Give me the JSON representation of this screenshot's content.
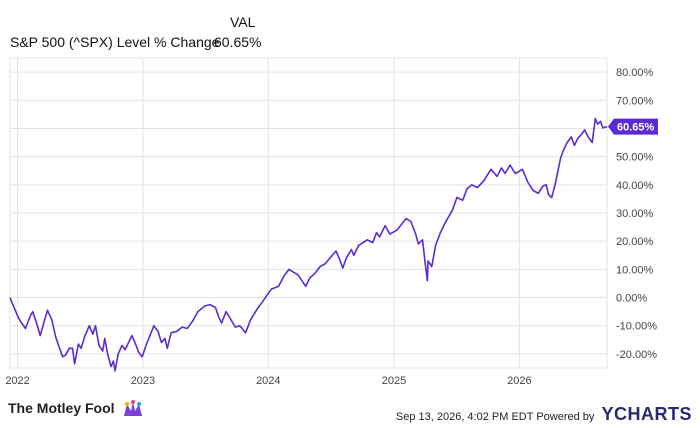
{
  "legend": {
    "header": "VAL",
    "series_name": "S&P 500 (^SPX) Level % Change",
    "value": "60.65%"
  },
  "footer": {
    "brand": "The Motley Fool",
    "timestamp": "Sep 13, 2026, 4:02 PM EDT",
    "powered_by": "Powered by",
    "provider": "YCHARTS"
  },
  "colors": {
    "line": "#5b2bd1",
    "grid": "#e3e3e3",
    "axis_text": "#444444"
  },
  "chart_data": {
    "type": "line",
    "title": "",
    "xlabel": "",
    "ylabel": "",
    "ylim": [
      -25,
      85
    ],
    "yticks": [
      -20,
      -10,
      0,
      10,
      20,
      30,
      40,
      50,
      60,
      70,
      80
    ],
    "ytick_labels": [
      "-20.00%",
      "-10.00%",
      "0.00%",
      "10.00%",
      "20.00%",
      "30.00%",
      "40.00%",
      "50.00%",
      "60.00%",
      "70.00%",
      "80.00%"
    ],
    "xlim": [
      "2021-12-10",
      "2026-09-13"
    ],
    "xticks": [
      "2022-01-01",
      "2023-01-01",
      "2024-01-01",
      "2025-01-01",
      "2026-01-01"
    ],
    "xtick_labels": [
      "2022",
      "2023",
      "2024",
      "2025",
      "2026"
    ],
    "last_value_label": "60.65%",
    "grid": true,
    "series": [
      {
        "name": "S&P 500 (^SPX) Level % Change",
        "x": [
          "2021-12-10",
          "2021-12-20",
          "2022-01-03",
          "2022-01-10",
          "2022-01-24",
          "2022-02-07",
          "2022-02-14",
          "2022-02-24",
          "2022-03-08",
          "2022-03-29",
          "2022-04-11",
          "2022-04-22",
          "2022-05-02",
          "2022-05-12",
          "2022-05-20",
          "2022-06-01",
          "2022-06-10",
          "2022-06-16",
          "2022-06-27",
          "2022-07-05",
          "2022-07-15",
          "2022-07-29",
          "2022-08-08",
          "2022-08-16",
          "2022-08-26",
          "2022-09-06",
          "2022-09-12",
          "2022-09-20",
          "2022-09-30",
          "2022-10-07",
          "2022-10-12",
          "2022-10-21",
          "2022-11-01",
          "2022-11-10",
          "2022-11-30",
          "2022-12-09",
          "2022-12-20",
          "2022-12-30",
          "2023-01-10",
          "2023-02-02",
          "2023-02-14",
          "2023-02-24",
          "2023-03-06",
          "2023-03-13",
          "2023-03-24",
          "2023-04-10",
          "2023-04-25",
          "2023-05-10",
          "2023-05-25",
          "2023-06-10",
          "2023-06-30",
          "2023-07-15",
          "2023-07-31",
          "2023-08-10",
          "2023-08-18",
          "2023-08-31",
          "2023-09-15",
          "2023-09-27",
          "2023-10-10",
          "2023-10-27",
          "2023-11-10",
          "2023-11-30",
          "2023-12-15",
          "2023-12-29",
          "2024-01-10",
          "2024-01-31",
          "2024-02-15",
          "2024-03-01",
          "2024-03-28",
          "2024-04-10",
          "2024-04-19",
          "2024-05-01",
          "2024-05-15",
          "2024-05-31",
          "2024-06-15",
          "2024-06-28",
          "2024-07-16",
          "2024-07-25",
          "2024-08-05",
          "2024-08-15",
          "2024-08-30",
          "2024-09-06",
          "2024-09-20",
          "2024-10-15",
          "2024-10-31",
          "2024-11-11",
          "2024-11-20",
          "2024-12-06",
          "2024-12-20",
          "2025-01-10",
          "2025-01-23",
          "2025-02-05",
          "2025-02-19",
          "2025-03-05",
          "2025-03-13",
          "2025-03-25",
          "2025-04-03",
          "2025-04-08",
          "2025-04-10",
          "2025-04-21",
          "2025-05-02",
          "2025-05-16",
          "2025-06-01",
          "2025-06-20",
          "2025-07-03",
          "2025-07-20",
          "2025-08-01",
          "2025-08-15",
          "2025-09-01",
          "2025-09-20",
          "2025-10-10",
          "2025-10-28",
          "2025-11-10",
          "2025-11-20",
          "2025-12-05",
          "2025-12-20",
          "2026-01-10",
          "2026-01-25",
          "2026-02-10",
          "2026-02-25",
          "2026-03-10",
          "2026-03-20",
          "2026-03-27",
          "2026-04-05",
          "2026-04-15",
          "2026-05-01",
          "2026-05-10",
          "2026-05-20",
          "2026-06-01",
          "2026-06-10",
          "2026-06-20",
          "2026-07-01",
          "2026-07-10",
          "2026-07-20",
          "2026-08-01",
          "2026-08-10",
          "2026-08-17",
          "2026-08-25",
          "2026-09-01",
          "2026-09-13"
        ],
        "y": [
          0.0,
          -3.0,
          -7.0,
          -8.5,
          -11.0,
          -6.5,
          -5.0,
          -8.5,
          -13.5,
          -4.5,
          -8.0,
          -14.0,
          -17.5,
          -21.0,
          -20.5,
          -18.0,
          -18.0,
          -23.5,
          -16.5,
          -18.0,
          -14.0,
          -10.0,
          -13.0,
          -10.0,
          -17.0,
          -19.0,
          -14.5,
          -20.0,
          -24.5,
          -22.5,
          -26.0,
          -20.0,
          -17.0,
          -18.5,
          -13.5,
          -16.0,
          -19.5,
          -21.0,
          -17.0,
          -10.0,
          -12.0,
          -16.0,
          -14.5,
          -18.0,
          -12.5,
          -12.0,
          -10.5,
          -11.0,
          -8.5,
          -5.0,
          -3.0,
          -2.5,
          -3.5,
          -7.0,
          -9.0,
          -5.0,
          -8.0,
          -10.5,
          -10.0,
          -12.5,
          -8.0,
          -4.0,
          -1.5,
          1.0,
          3.0,
          4.0,
          7.5,
          10.0,
          8.0,
          5.5,
          4.0,
          7.0,
          8.5,
          11.0,
          12.0,
          14.0,
          16.5,
          14.0,
          10.5,
          14.0,
          17.0,
          15.0,
          18.5,
          20.5,
          19.5,
          23.0,
          21.5,
          25.5,
          22.5,
          24.0,
          26.0,
          28.0,
          27.0,
          22.5,
          19.0,
          20.5,
          11.0,
          6.0,
          13.0,
          11.0,
          18.5,
          23.0,
          27.0,
          31.0,
          35.5,
          34.5,
          38.5,
          40.0,
          39.0,
          41.5,
          45.5,
          43.0,
          46.0,
          44.0,
          47.0,
          44.0,
          45.5,
          41.0,
          38.0,
          37.0,
          39.5,
          40.0,
          36.5,
          35.5,
          40.0,
          49.5,
          52.5,
          55.0,
          57.0,
          54.0,
          56.5,
          58.0,
          59.5,
          57.0,
          55.0,
          63.5,
          61.5,
          62.5,
          60.2,
          60.65
        ]
      }
    ]
  }
}
